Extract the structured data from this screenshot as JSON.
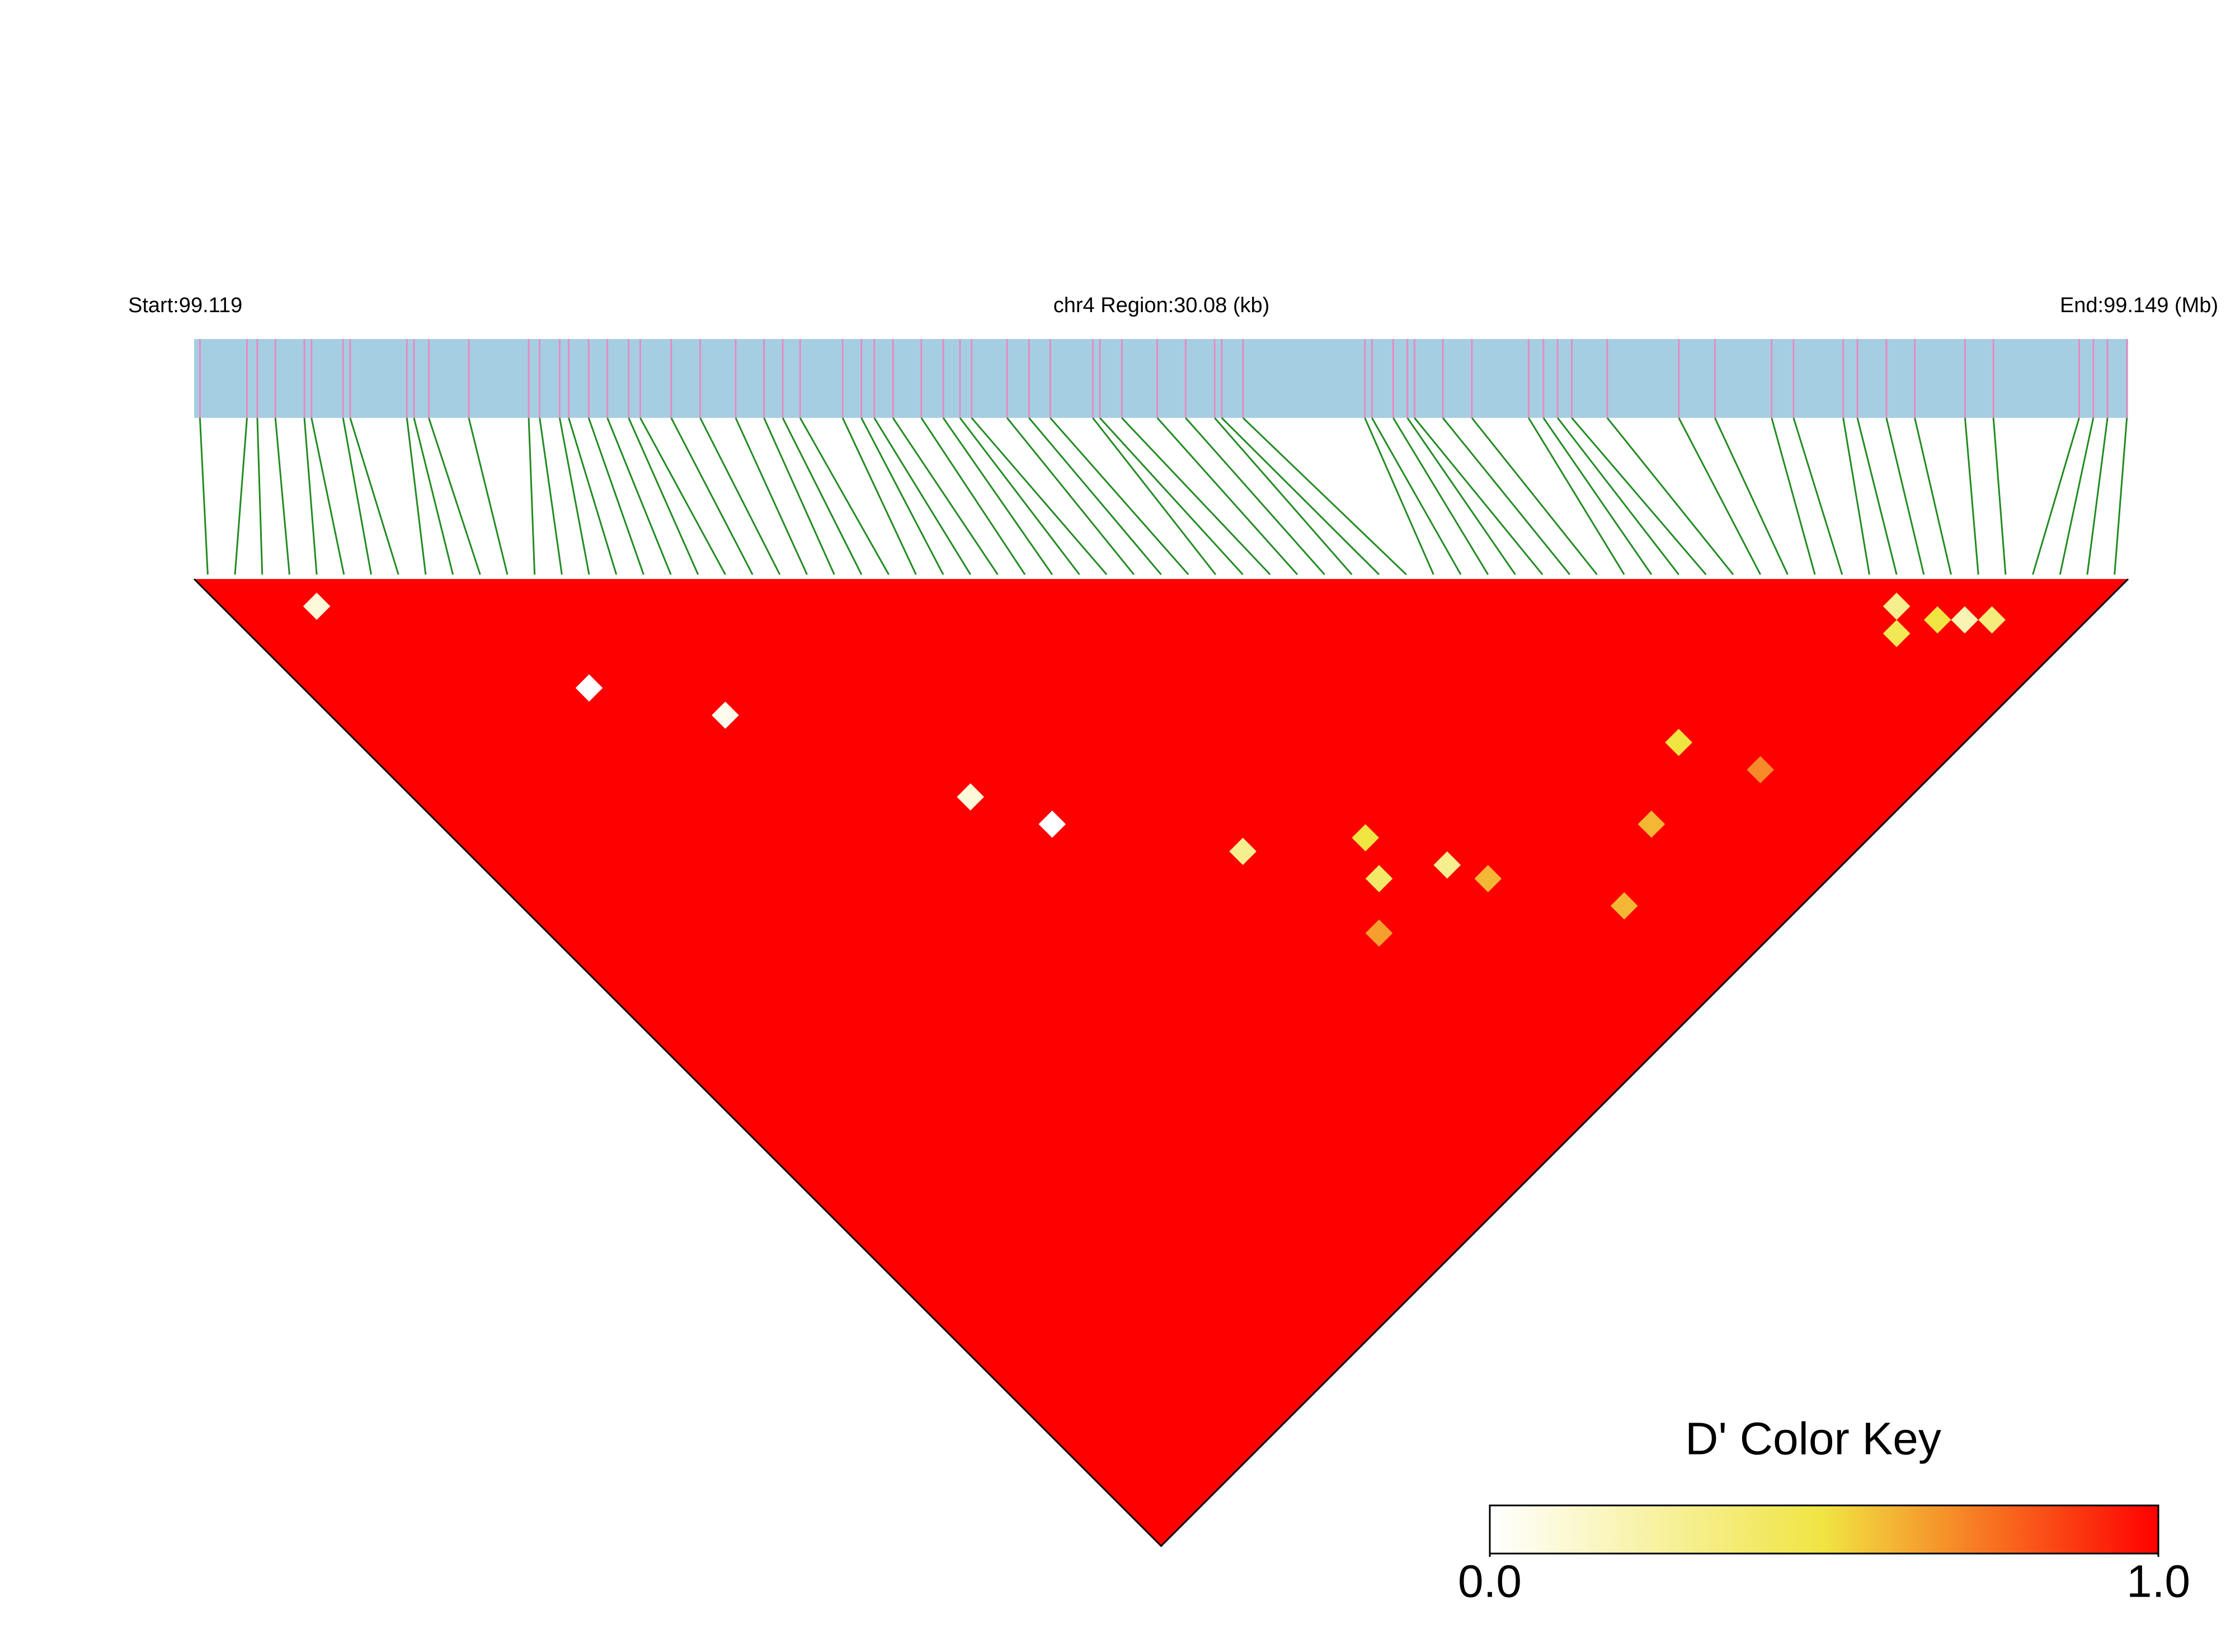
{
  "chart_data": {
    "type": "ld-heatmap",
    "start_label": "Start:99.119",
    "region_label": "chr4 Region:30.08 (kb)",
    "end_label": "End:99.149 (Mb)",
    "xlim": [
      99.119,
      99.149
    ],
    "snp_positions": [
      99.11909,
      99.11982,
      99.11998,
      99.12026,
      99.12071,
      99.12082,
      99.12131,
      99.12142,
      99.1223,
      99.12241,
      99.12264,
      99.12326,
      99.12419,
      99.12436,
      99.12467,
      99.12481,
      99.12512,
      99.12541,
      99.12574,
      99.12592,
      99.1264,
      99.12685,
      99.1274,
      99.12784,
      99.12813,
      99.1284,
      99.12906,
      99.12935,
      99.12955,
      99.12984,
      99.13028,
      99.13062,
      99.13088,
      99.13106,
      99.13161,
      99.13195,
      99.13228,
      99.13294,
      99.13305,
      99.13339,
      99.13394,
      99.13438,
      99.13483,
      99.13494,
      99.13527,
      99.13716,
      99.13727,
      99.1376,
      99.13782,
      99.13793,
      99.13837,
      99.13882,
      99.1397,
      99.13993,
      99.14015,
      99.14037,
      99.14092,
      99.14203,
      99.14259,
      99.14347,
      99.14381,
      99.14458,
      99.1448,
      99.14525,
      99.14569,
      99.14647,
      99.14691,
      99.14824,
      99.14846,
      99.14868,
      99.14898
    ],
    "default_value": 1,
    "cells": [
      {
        "snps": [
          61,
          63
        ],
        "value": 0.3
      },
      {
        "snps": [
          62,
          65
        ],
        "value": 0.5
      },
      {
        "snps": [
          63,
          66
        ],
        "value": 0.2
      },
      {
        "snps": [
          60,
          64
        ],
        "value": 0.45
      },
      {
        "snps": [
          64,
          67
        ],
        "value": 0.35
      },
      {
        "snps": [
          3,
          5
        ],
        "value": 0.1
      },
      {
        "snps": [
          10,
          18
        ],
        "value": 0.0
      },
      {
        "snps": [
          14,
          24
        ],
        "value": 0.05
      },
      {
        "snps": [
          20,
          36
        ],
        "value": 0.1
      },
      {
        "snps": [
          22,
          40
        ],
        "value": 0.0
      },
      {
        "snps": [
          28,
          48
        ],
        "value": 0.3
      },
      {
        "snps": [
          33,
          52
        ],
        "value": 0.5
      },
      {
        "snps": [
          32,
          54
        ],
        "value": 0.4
      },
      {
        "snps": [
          35,
          56
        ],
        "value": 0.3
      },
      {
        "snps": [
          36,
          58
        ],
        "value": 0.6
      },
      {
        "snps": [
          48,
          60
        ],
        "value": 0.5
      },
      {
        "snps": [
          50,
          64
        ],
        "value": 0.7
      },
      {
        "snps": [
          44,
          62
        ],
        "value": 0.6
      },
      {
        "snps": [
          40,
          64
        ],
        "value": 0.6
      },
      {
        "snps": [
          30,
          56
        ],
        "value": 0.65
      }
    ],
    "colorbar_title": "D' Color Key",
    "clim": [
      0,
      1
    ],
    "cticks": [
      {
        "value": 0,
        "label": "0.0"
      },
      {
        "value": 1,
        "label": "1.0"
      }
    ],
    "colors": {
      "low": "#ffffff",
      "mid": "#f0e442",
      "high": "#ff0000",
      "band": "#a6cee3",
      "snp": "#e78ac3",
      "link": "#228b22"
    }
  }
}
